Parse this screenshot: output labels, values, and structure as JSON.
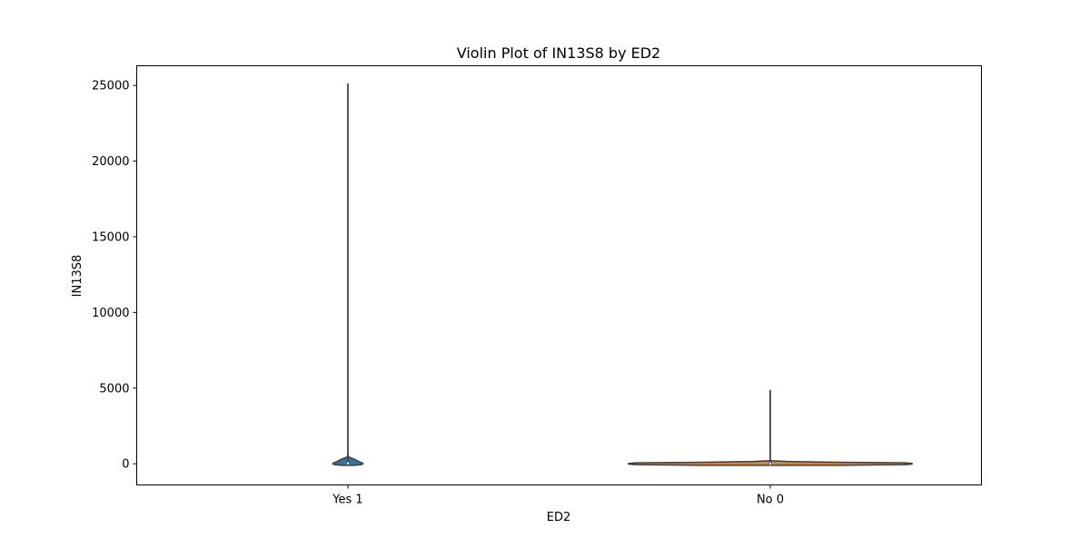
{
  "chart_data": {
    "type": "violin",
    "title": "Violin Plot of IN13S8 by ED2",
    "xlabel": "ED2",
    "ylabel": "IN13S8",
    "categories": [
      "Yes 1",
      "No 0"
    ],
    "ylim": [
      -1400,
      26300
    ],
    "yticks": [
      0,
      5000,
      10000,
      15000,
      20000,
      25000
    ],
    "grid": false,
    "legend": "none",
    "violins": [
      {
        "category": "Yes 1",
        "color": "#3274a1",
        "range": [
          -100,
          25100
        ],
        "profile": [
          [
            -100,
            0.04
          ],
          [
            -60,
            0.08
          ],
          [
            0,
            0.09
          ],
          [
            60,
            0.085
          ],
          [
            120,
            0.07
          ],
          [
            200,
            0.055
          ],
          [
            300,
            0.04
          ],
          [
            380,
            0.02
          ],
          [
            450,
            0.004
          ],
          [
            600,
            0.0
          ],
          [
            25100,
            0.0
          ]
        ],
        "box": {
          "q1": 0,
          "median": 30,
          "q3": 110,
          "whisker_low": -100,
          "whisker_high": 25100
        }
      },
      {
        "category": "No 0",
        "color": "#e1812c",
        "range": [
          -100,
          4850
        ],
        "profile": [
          [
            -100,
            0.4
          ],
          [
            -60,
            0.8
          ],
          [
            -20,
            0.84
          ],
          [
            0,
            0.8
          ],
          [
            20,
            0.84
          ],
          [
            60,
            0.8
          ],
          [
            100,
            0.4
          ],
          [
            150,
            0.1
          ],
          [
            200,
            0.0
          ],
          [
            4850,
            0.0
          ]
        ],
        "box": {
          "q1": -10,
          "median": 0,
          "q3": 10,
          "whisker_low": -100,
          "whisker_high": 4850
        }
      }
    ]
  }
}
